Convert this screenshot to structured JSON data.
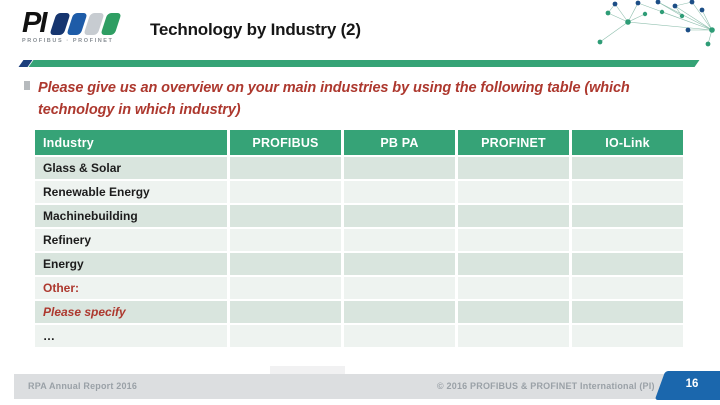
{
  "slide": {
    "logo": {
      "text": "PI",
      "subtext": "PROFIBUS · PROFINET"
    },
    "title": "Technology by Industry (2)",
    "intro": "Please give us an overview on your main industries by using the following table (which technology in which industry)",
    "table": {
      "columns": [
        "Industry",
        "PROFIBUS",
        "PB PA",
        "PROFINET",
        "IO-Link"
      ],
      "rows": [
        {
          "label": "Glass & Solar",
          "emphasis": "normal"
        },
        {
          "label": "Renewable Energy",
          "emphasis": "normal"
        },
        {
          "label": "Machinebuilding",
          "emphasis": "normal"
        },
        {
          "label": "Refinery",
          "emphasis": "normal"
        },
        {
          "label": "Energy",
          "emphasis": "normal"
        },
        {
          "label": "Other:",
          "emphasis": "red-bold"
        },
        {
          "label": "Please specify",
          "emphasis": "red-italic"
        },
        {
          "label": "…",
          "emphasis": "normal"
        }
      ],
      "empty_columns_per_row": 4
    },
    "footer": {
      "left": "RPA Annual Report 2016",
      "copyright": "© 2016   PROFIBUS & PROFINET International (PI)",
      "page": "16"
    },
    "colors": {
      "header_green": "#36a377",
      "divider_green": "#35a376",
      "row_dark": "#d9e5de",
      "row_light": "#eef3f0",
      "accent_red": "#ad382e",
      "logo_navy": "#16356f",
      "logo_blue": "#1e5ca8",
      "logo_gray": "#c7ccd1",
      "logo_green": "#2f9e63",
      "badge_blue": "#1b67ad",
      "footer_gray": "#dcdee0"
    }
  }
}
